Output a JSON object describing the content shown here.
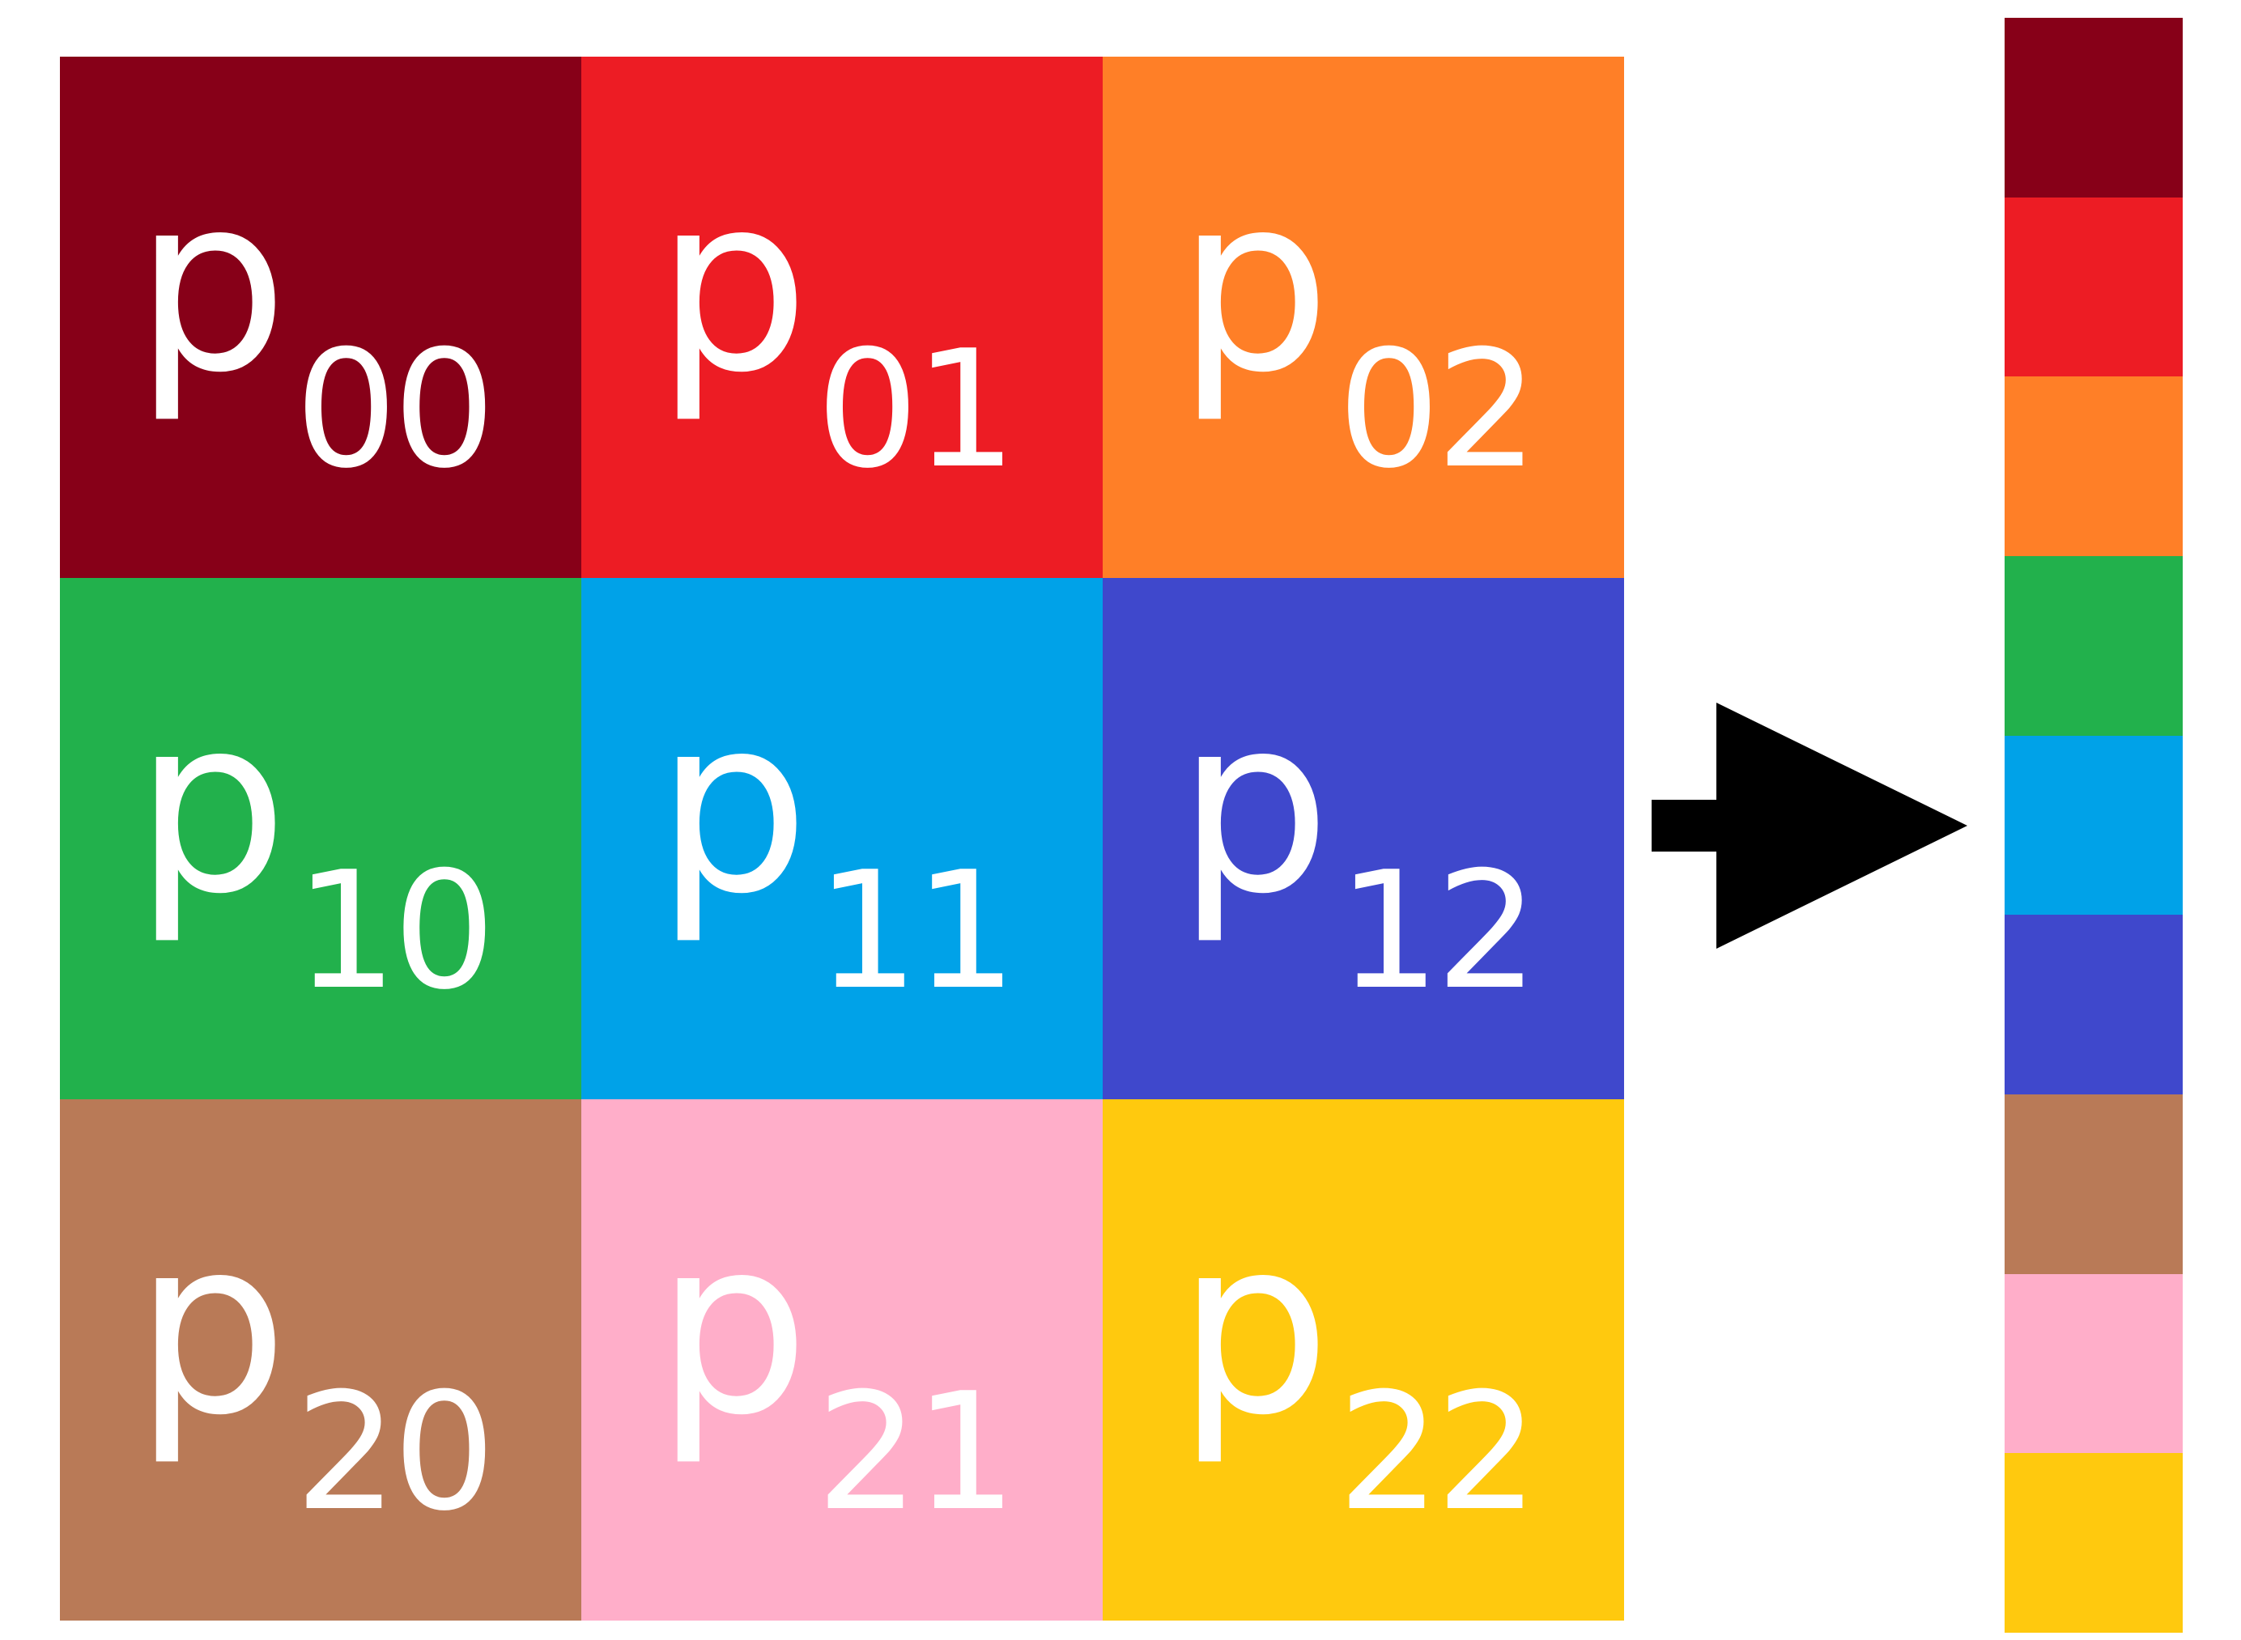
{
  "cells": [
    {
      "base": "p",
      "sub": "00",
      "color": "#870018"
    },
    {
      "base": "p",
      "sub": "01",
      "color": "#ED1C24"
    },
    {
      "base": "p",
      "sub": "02",
      "color": "#FF7F27"
    },
    {
      "base": "p",
      "sub": "10",
      "color": "#22B14C"
    },
    {
      "base": "p",
      "sub": "11",
      "color": "#00A2E8"
    },
    {
      "base": "p",
      "sub": "12",
      "color": "#3F48CC"
    },
    {
      "base": "p",
      "sub": "20",
      "color": "#B97A57"
    },
    {
      "base": "p",
      "sub": "21",
      "color": "#FFAEC9"
    },
    {
      "base": "p",
      "sub": "22",
      "color": "#FFC90E"
    }
  ],
  "arrow": {
    "color": "#000000"
  },
  "flattened_column": {
    "colors": [
      "#870018",
      "#ED1C24",
      "#FF7F27",
      "#22B14C",
      "#00A2E8",
      "#3F48CC",
      "#B97A57",
      "#FFAEC9",
      "#FFC90E"
    ]
  }
}
